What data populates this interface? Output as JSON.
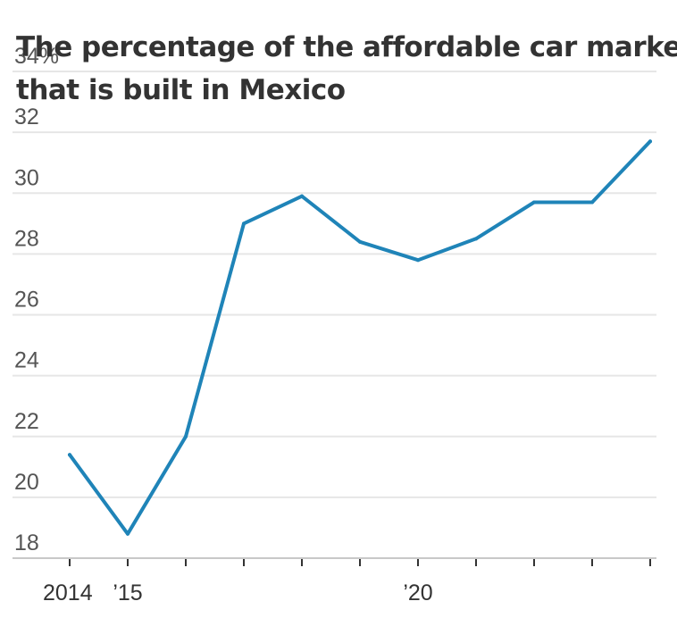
{
  "chart_data": {
    "type": "line",
    "title": "The percentage of the affordable car market that is built in Mexico",
    "title_lines": [
      "The percentage of the affordable car market",
      "that is built in Mexico"
    ],
    "xlabel": "",
    "ylabel": "",
    "x": [
      2014,
      2015,
      2016,
      2017,
      2018,
      2019,
      2020,
      2021,
      2022,
      2023,
      2024
    ],
    "series": [
      {
        "values": [
          21.4,
          18.8,
          22.0,
          29.0,
          29.9,
          28.4,
          27.8,
          28.5,
          29.7,
          29.7,
          31.7
        ]
      }
    ],
    "xlim": [
      2014,
      2024
    ],
    "ylim": [
      18,
      34
    ],
    "yticks": [
      {
        "value": 34,
        "label": "34%"
      },
      {
        "value": 32,
        "label": "32"
      },
      {
        "value": 30,
        "label": "30"
      },
      {
        "value": 28,
        "label": "28"
      },
      {
        "value": 26,
        "label": "26"
      },
      {
        "value": 24,
        "label": "24"
      },
      {
        "value": 22,
        "label": "22"
      },
      {
        "value": 20,
        "label": "20"
      },
      {
        "value": 18,
        "label": "18"
      }
    ],
    "xticks": [
      2014,
      2015,
      2016,
      2017,
      2018,
      2019,
      2020,
      2021,
      2022,
      2023,
      2024
    ],
    "xtick_labels": [
      {
        "value": 2014,
        "label": "2014"
      },
      {
        "value": 2015,
        "label": "’15"
      },
      {
        "value": 2020,
        "label": "’20"
      }
    ],
    "grid": true,
    "legend": "none",
    "colors": {
      "series": "#1f84b8",
      "grid": "#e6e6e6",
      "baseline": "#c8c8c8",
      "text": "#333333"
    }
  }
}
